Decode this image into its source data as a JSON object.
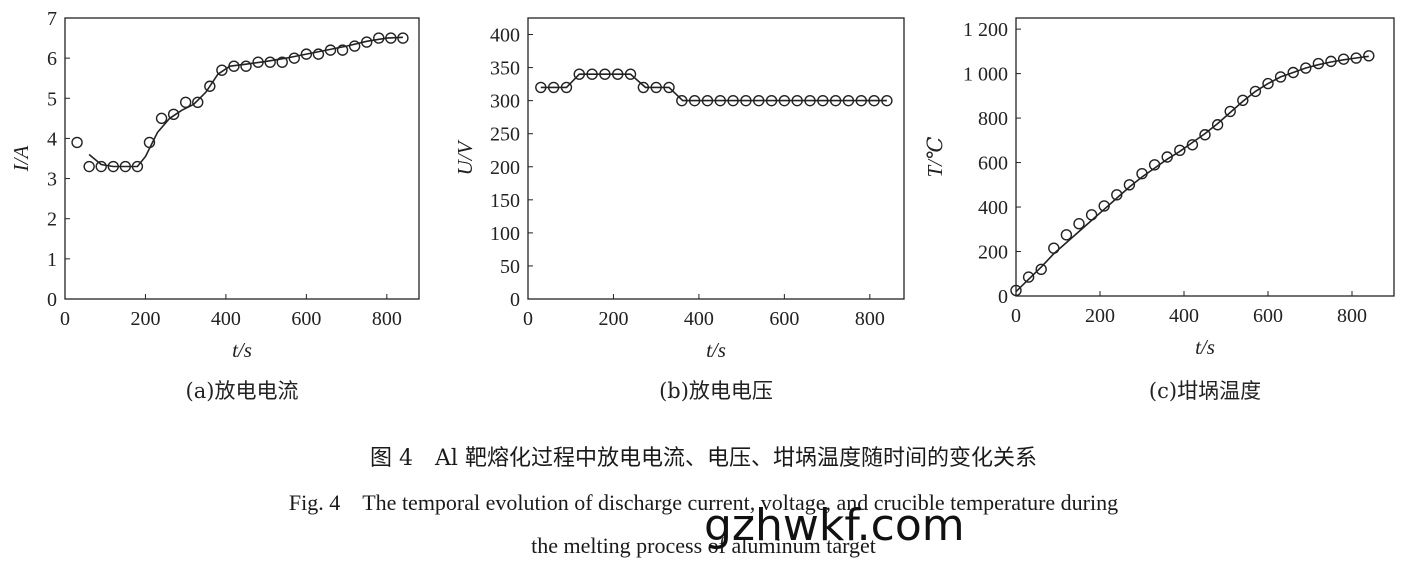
{
  "chart_data": [
    {
      "type": "scatter",
      "caption": "(a)放电电流",
      "xlabel": "t/s",
      "ylabel": "I/A",
      "xlim": [
        0,
        880
      ],
      "ylim": [
        0,
        7
      ],
      "xticks": [
        0,
        200,
        400,
        600,
        800
      ],
      "yticks": [
        0,
        1,
        2,
        3,
        4,
        5,
        6,
        7
      ],
      "xtick_labels": [
        "0",
        "200",
        "400",
        "600",
        "800"
      ],
      "ytick_labels": [
        "0",
        "1",
        "2",
        "3",
        "4",
        "5",
        "6",
        "7"
      ],
      "series": [
        {
          "kind": "markers",
          "x": [
            30,
            60,
            90,
            120,
            150,
            180,
            210,
            240,
            270,
            300,
            330,
            360,
            390,
            420,
            450,
            480,
            510,
            540,
            570,
            600,
            630,
            660,
            690,
            720,
            750,
            780,
            810,
            840
          ],
          "y": [
            3.9,
            3.3,
            3.3,
            3.3,
            3.3,
            3.3,
            3.9,
            4.5,
            4.6,
            4.9,
            4.9,
            5.3,
            5.7,
            5.8,
            5.8,
            5.9,
            5.9,
            5.9,
            6.0,
            6.1,
            6.1,
            6.2,
            6.2,
            6.3,
            6.4,
            6.5,
            6.5,
            6.5
          ]
        },
        {
          "kind": "fit-line",
          "x": [
            60,
            90,
            120,
            150,
            180,
            200,
            230,
            260,
            290,
            320,
            350,
            380,
            410,
            450,
            500,
            550,
            600,
            650,
            700,
            750,
            800,
            840
          ],
          "y": [
            3.6,
            3.35,
            3.3,
            3.3,
            3.3,
            3.55,
            4.15,
            4.5,
            4.7,
            4.85,
            5.15,
            5.6,
            5.8,
            5.85,
            5.92,
            6.0,
            6.1,
            6.2,
            6.3,
            6.42,
            6.5,
            6.52
          ]
        }
      ]
    },
    {
      "type": "scatter",
      "caption": "(b)放电电压",
      "xlabel": "t/s",
      "ylabel": "U/V",
      "xlim": [
        0,
        880
      ],
      "ylim": [
        0,
        425
      ],
      "xticks": [
        0,
        200,
        400,
        600,
        800
      ],
      "yticks": [
        0,
        50,
        100,
        150,
        200,
        250,
        300,
        350,
        400
      ],
      "xtick_labels": [
        "0",
        "200",
        "400",
        "600",
        "800"
      ],
      "ytick_labels": [
        "0",
        "50",
        "100",
        "150",
        "200",
        "250",
        "300",
        "350",
        "400"
      ],
      "series": [
        {
          "kind": "markers",
          "x": [
            30,
            60,
            90,
            120,
            150,
            180,
            210,
            240,
            270,
            300,
            330,
            360,
            390,
            420,
            450,
            480,
            510,
            540,
            570,
            600,
            630,
            660,
            690,
            720,
            750,
            780,
            810,
            840
          ],
          "y": [
            320,
            320,
            320,
            340,
            340,
            340,
            340,
            340,
            320,
            320,
            320,
            300,
            300,
            300,
            300,
            300,
            300,
            300,
            300,
            300,
            300,
            300,
            300,
            300,
            300,
            300,
            300,
            300
          ]
        },
        {
          "kind": "fit-line",
          "x": [
            30,
            90,
            120,
            240,
            275,
            330,
            362,
            840
          ],
          "y": [
            320,
            320,
            340,
            340,
            320,
            320,
            300,
            300
          ]
        }
      ]
    },
    {
      "type": "scatter",
      "caption": "(c)坩埚温度",
      "xlabel": "t/s",
      "ylabel": "T/℃",
      "xlim": [
        0,
        900
      ],
      "ylim": [
        0,
        1250
      ],
      "xticks": [
        0,
        200,
        400,
        600,
        800
      ],
      "yticks": [
        0,
        200,
        400,
        600,
        800,
        1000,
        1200
      ],
      "xtick_labels": [
        "0",
        "200",
        "400",
        "600",
        "800"
      ],
      "ytick_labels": [
        "0",
        "200",
        "400",
        "600",
        "800",
        "1 000",
        "1 200"
      ],
      "series": [
        {
          "kind": "markers",
          "x": [
            0,
            30,
            60,
            90,
            120,
            150,
            180,
            210,
            240,
            270,
            300,
            330,
            360,
            390,
            420,
            450,
            480,
            510,
            540,
            570,
            600,
            630,
            660,
            690,
            720,
            750,
            780,
            810,
            840
          ],
          "y": [
            25,
            85,
            120,
            215,
            275,
            325,
            365,
            405,
            455,
            500,
            550,
            590,
            625,
            655,
            680,
            725,
            770,
            830,
            880,
            920,
            955,
            985,
            1005,
            1025,
            1045,
            1055,
            1065,
            1070,
            1080
          ]
        },
        {
          "kind": "fit-line",
          "x": [
            0,
            30,
            60,
            90,
            120,
            150,
            180,
            210,
            240,
            270,
            300,
            330,
            360,
            390,
            420,
            450,
            480,
            510,
            540,
            570,
            600,
            630,
            660,
            690,
            720,
            750,
            780,
            810,
            840
          ],
          "y": [
            20,
            75,
            130,
            190,
            240,
            290,
            340,
            390,
            440,
            490,
            535,
            575,
            615,
            650,
            690,
            730,
            775,
            825,
            875,
            920,
            955,
            985,
            1005,
            1025,
            1040,
            1052,
            1062,
            1070,
            1078
          ]
        }
      ]
    }
  ],
  "caption_cn": "图 4　Al 靶熔化过程中放电电流、电压、坩埚温度随时间的变化关系",
  "caption_en_line1": "Fig. 4　The temporal evolution of discharge current, voltage, and crucible temperature during",
  "caption_en_line2": "the melting process of aluminum target",
  "watermark": "gzhwkf.com",
  "colors": {
    "ink": "#222222",
    "background": "#ffffff"
  }
}
